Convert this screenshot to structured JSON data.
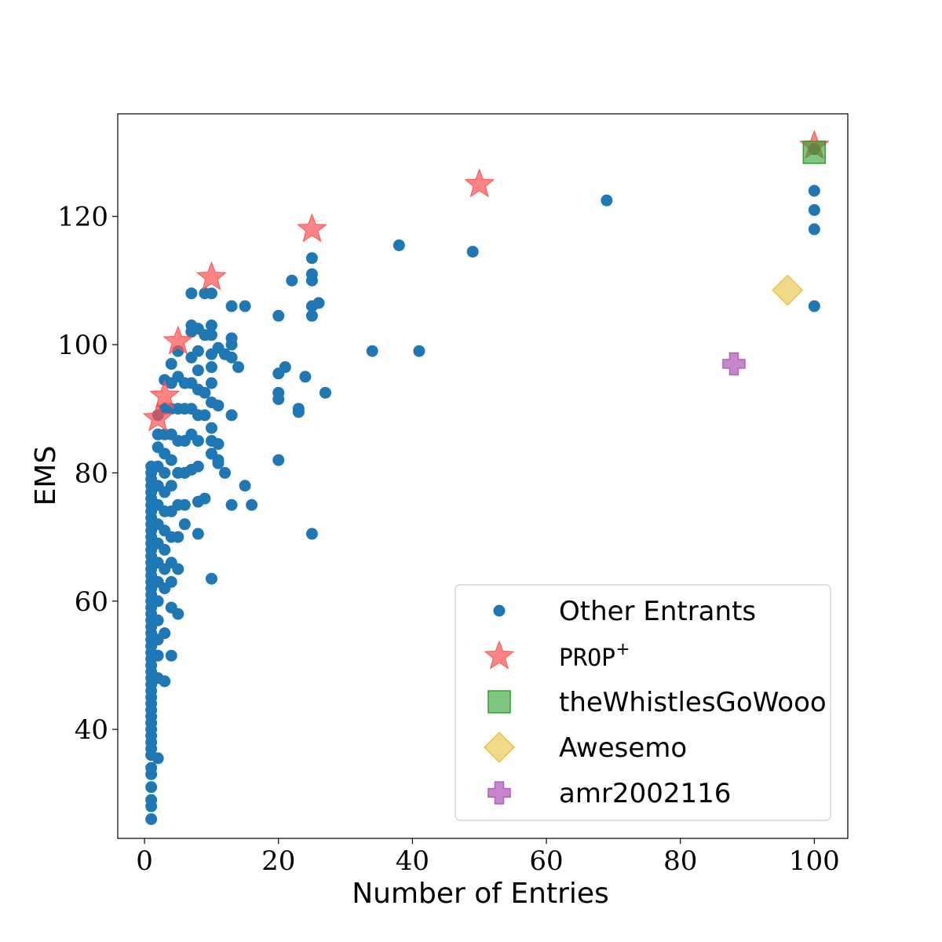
{
  "chart_data": {
    "type": "scatter",
    "title": "",
    "xlabel": "Number of Entries",
    "ylabel": "EMS",
    "xlim": [
      -4,
      105
    ],
    "ylim": [
      23,
      136
    ],
    "xticks": [
      0,
      20,
      40,
      60,
      80,
      100
    ],
    "yticks": [
      40,
      60,
      80,
      100,
      120
    ],
    "grid": false,
    "legend_position": "bottom-right",
    "series": [
      {
        "name": "Other Entrants",
        "marker": "circle",
        "color": "#1f77b4",
        "points": [
          [
            1,
            26
          ],
          [
            1,
            28
          ],
          [
            1,
            29
          ],
          [
            1,
            31
          ],
          [
            1,
            33
          ],
          [
            1,
            34
          ],
          [
            1,
            36
          ],
          [
            1,
            37
          ],
          [
            1,
            38
          ],
          [
            1,
            39
          ],
          [
            1,
            40
          ],
          [
            1,
            41
          ],
          [
            1,
            42
          ],
          [
            1,
            43
          ],
          [
            1,
            44
          ],
          [
            1,
            45
          ],
          [
            1,
            46
          ],
          [
            1,
            47
          ],
          [
            1,
            48
          ],
          [
            1,
            49
          ],
          [
            1,
            50
          ],
          [
            1,
            51
          ],
          [
            1,
            52
          ],
          [
            1,
            53
          ],
          [
            1,
            54
          ],
          [
            1,
            55
          ],
          [
            1,
            56
          ],
          [
            1,
            57
          ],
          [
            1,
            58
          ],
          [
            1,
            59
          ],
          [
            1,
            60
          ],
          [
            1,
            61
          ],
          [
            1,
            62
          ],
          [
            1,
            63
          ],
          [
            1,
            64
          ],
          [
            1,
            65
          ],
          [
            1,
            66
          ],
          [
            1,
            67
          ],
          [
            1,
            68
          ],
          [
            1,
            69
          ],
          [
            1,
            70
          ],
          [
            1,
            71
          ],
          [
            1,
            72
          ],
          [
            1,
            73
          ],
          [
            1,
            74
          ],
          [
            1,
            75
          ],
          [
            1,
            76
          ],
          [
            1,
            77
          ],
          [
            1,
            78
          ],
          [
            1,
            79
          ],
          [
            1,
            80
          ],
          [
            1,
            81
          ],
          [
            2,
            35.5
          ],
          [
            2,
            48
          ],
          [
            2,
            51.5
          ],
          [
            2,
            54
          ],
          [
            2,
            57
          ],
          [
            2,
            60
          ],
          [
            2,
            63
          ],
          [
            2,
            66
          ],
          [
            2,
            69
          ],
          [
            2,
            72
          ],
          [
            2,
            75
          ],
          [
            2,
            78
          ],
          [
            2,
            81
          ],
          [
            2,
            84
          ],
          [
            2,
            86
          ],
          [
            2,
            89
          ],
          [
            3,
            47.5
          ],
          [
            3,
            55
          ],
          [
            3,
            62
          ],
          [
            3,
            65
          ],
          [
            3,
            68
          ],
          [
            3,
            71
          ],
          [
            3,
            74
          ],
          [
            3,
            77
          ],
          [
            3,
            80
          ],
          [
            3,
            83
          ],
          [
            3,
            86
          ],
          [
            3,
            90
          ],
          [
            3,
            94.5
          ],
          [
            4,
            51.5
          ],
          [
            4,
            59
          ],
          [
            4,
            63
          ],
          [
            4,
            66
          ],
          [
            4,
            70
          ],
          [
            4,
            74
          ],
          [
            4,
            78
          ],
          [
            4,
            82
          ],
          [
            4,
            86
          ],
          [
            4,
            90
          ],
          [
            4,
            94
          ],
          [
            4,
            97
          ],
          [
            5,
            58
          ],
          [
            5,
            65
          ],
          [
            5,
            70
          ],
          [
            5,
            75
          ],
          [
            5,
            80
          ],
          [
            5,
            85
          ],
          [
            5,
            90
          ],
          [
            5,
            95
          ],
          [
            5,
            99
          ],
          [
            6,
            72
          ],
          [
            6,
            75
          ],
          [
            6,
            80
          ],
          [
            6,
            85
          ],
          [
            6,
            90
          ],
          [
            6,
            94
          ],
          [
            7,
            80.5
          ],
          [
            7,
            86
          ],
          [
            7,
            90
          ],
          [
            7,
            94
          ],
          [
            7,
            98
          ],
          [
            7,
            102
          ],
          [
            7,
            103
          ],
          [
            7,
            108
          ],
          [
            8,
            70.5
          ],
          [
            8,
            75.5
          ],
          [
            8,
            81
          ],
          [
            8,
            85
          ],
          [
            8,
            89
          ],
          [
            8,
            93
          ],
          [
            8,
            96
          ],
          [
            8,
            99
          ],
          [
            8,
            102.5
          ],
          [
            9,
            76
          ],
          [
            9,
            89
          ],
          [
            9,
            92.5
          ],
          [
            9,
            101.5
          ],
          [
            9,
            108
          ],
          [
            10,
            63.5
          ],
          [
            10,
            83
          ],
          [
            10,
            85
          ],
          [
            10,
            87
          ],
          [
            10,
            91
          ],
          [
            10,
            94
          ],
          [
            10,
            96.5
          ],
          [
            10,
            98.5
          ],
          [
            10,
            101.5
          ],
          [
            10,
            103
          ],
          [
            10,
            108
          ],
          [
            11,
            81.5
          ],
          [
            11,
            82
          ],
          [
            11,
            84.5
          ],
          [
            11,
            90.5
          ],
          [
            11,
            99.5
          ],
          [
            12,
            80
          ],
          [
            12,
            98.5
          ],
          [
            13,
            75
          ],
          [
            13,
            89
          ],
          [
            13,
            98
          ],
          [
            13,
            100
          ],
          [
            13,
            101
          ],
          [
            13,
            106
          ],
          [
            14,
            96.5
          ],
          [
            15,
            78
          ],
          [
            15,
            106
          ],
          [
            16,
            75
          ],
          [
            20,
            82
          ],
          [
            20,
            91.5
          ],
          [
            20,
            92.5
          ],
          [
            20,
            95.5
          ],
          [
            20,
            104.5
          ],
          [
            21,
            96.5
          ],
          [
            22,
            110
          ],
          [
            23,
            89.5
          ],
          [
            23,
            90
          ],
          [
            24,
            95
          ],
          [
            25,
            70.5
          ],
          [
            25,
            104.5
          ],
          [
            25,
            106
          ],
          [
            25,
            110
          ],
          [
            25,
            111
          ],
          [
            25,
            113.5
          ],
          [
            26,
            106.5
          ],
          [
            27,
            92.5
          ],
          [
            34,
            99
          ],
          [
            38,
            115.5
          ],
          [
            41,
            99
          ],
          [
            49,
            114.5
          ],
          [
            69,
            122.5
          ],
          [
            100,
            106
          ],
          [
            100,
            118
          ],
          [
            100,
            121
          ],
          [
            100,
            124
          ],
          [
            100,
            130.5
          ]
        ]
      },
      {
        "name": "PROP+",
        "marker": "star",
        "color": "#ff5050",
        "points": [
          [
            2,
            88.5
          ],
          [
            3,
            92
          ],
          [
            5,
            100.5
          ],
          [
            10,
            110.5
          ],
          [
            25,
            118
          ],
          [
            50,
            125
          ],
          [
            100,
            131
          ]
        ]
      },
      {
        "name": "theWhistlesGoWooo",
        "marker": "square",
        "color": "#2ca02c",
        "points": [
          [
            100,
            130
          ]
        ]
      },
      {
        "name": "Awesemo",
        "marker": "diamond",
        "color": "#e8c547",
        "points": [
          [
            96,
            108.5
          ]
        ]
      },
      {
        "name": "amr2002116",
        "marker": "plus",
        "color": "#b05fbb",
        "points": [
          [
            88,
            97
          ]
        ]
      }
    ]
  }
}
